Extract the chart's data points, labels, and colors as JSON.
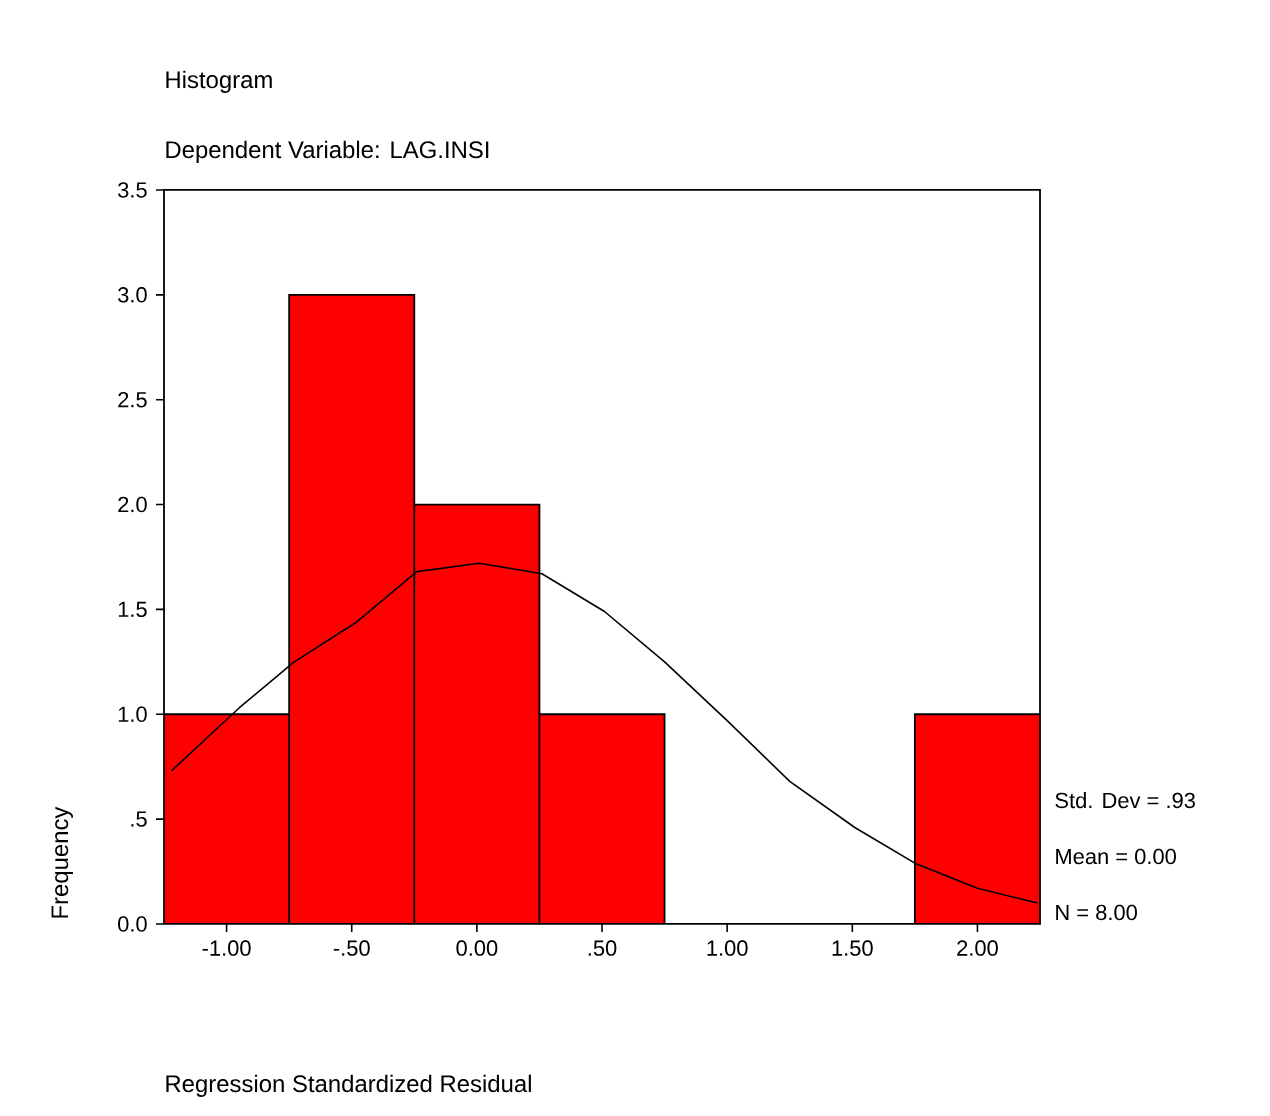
{
  "chart_data": {
    "type": "histogram",
    "title": "Histogram",
    "subtitle": "Dependent Variable: LAG.INSI",
    "xlabel": "Regression Standardized Residual",
    "ylabel": "Frequency",
    "bins": [
      -1.25,
      -0.75,
      -0.25,
      0.25,
      0.75,
      1.25,
      1.75,
      2.25
    ],
    "values": [
      1,
      3,
      2,
      1,
      0,
      0,
      1
    ],
    "color": "#ff0000",
    "series": [
      {
        "type": "line",
        "color": "#000000",
        "x": [
          -1.22,
          -0.95,
          -0.73,
          -0.48,
          -0.24,
          0.01,
          0.26,
          0.51,
          0.75,
          1.0,
          1.25,
          1.51,
          1.75,
          2.0,
          2.24
        ],
        "values": [
          0.73,
          1.03,
          1.25,
          1.44,
          1.68,
          1.72,
          1.67,
          1.49,
          1.25,
          0.97,
          0.68,
          0.46,
          0.29,
          0.17,
          0.1
        ]
      }
    ],
    "xlim": [
      -1.25,
      2.25
    ],
    "ylim": [
      0,
      3.5
    ],
    "xticks": [
      {
        "value": -1,
        "label": "-1.00"
      },
      {
        "value": -0.5,
        "label": "-.50"
      },
      {
        "value": 0,
        "label": "0.00"
      },
      {
        "value": 0.5,
        "label": ".50"
      },
      {
        "value": 1,
        "label": "1.00"
      },
      {
        "value": 1.5,
        "label": "1.50"
      },
      {
        "value": 2,
        "label": "2.00"
      }
    ],
    "yticks": [
      {
        "value": 0,
        "label": "0.0"
      },
      {
        "value": 0.5,
        "label": ".5"
      },
      {
        "value": 1,
        "label": "1.0"
      },
      {
        "value": 1.5,
        "label": "1.5"
      },
      {
        "value": 2,
        "label": "2.0"
      },
      {
        "value": 2.5,
        "label": "2.5"
      },
      {
        "value": 3,
        "label": "3.0"
      },
      {
        "value": 3.5,
        "label": "3.5"
      }
    ],
    "annotations": [
      "Std. Dev = .93",
      "Mean = 0.00",
      "N = 8.00"
    ]
  }
}
